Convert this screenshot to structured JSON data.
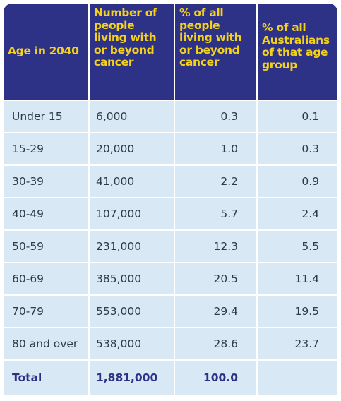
{
  "chart_data": {
    "type": "table",
    "columns": [
      "Age in 2040",
      "Number of people living with or beyond cancer",
      "% of all people living with or beyond cancer",
      "% of all Australians of that age group"
    ],
    "rows": [
      [
        "Under 15",
        "6,000",
        "0.3",
        "0.1"
      ],
      [
        "15-29",
        "20,000",
        "1.0",
        "0.3"
      ],
      [
        "30-39",
        "41,000",
        "2.2",
        "0.9"
      ],
      [
        "40-49",
        "107,000",
        "5.7",
        "2.4"
      ],
      [
        "50-59",
        "231,000",
        "12.3",
        "5.5"
      ],
      [
        "60-69",
        "385,000",
        "20.5",
        "11.4"
      ],
      [
        "70-79",
        "553,000",
        "29.4",
        "19.5"
      ],
      [
        "80 and over",
        "538,000",
        "28.6",
        "23.7"
      ]
    ],
    "total": [
      "Total",
      "1,881,000",
      "100.0",
      ""
    ]
  },
  "colors": {
    "header_bg": "#2e3286",
    "header_text": "#f4d21a",
    "cell_bg": "#d9e8f5",
    "total_text": "#2e3286"
  }
}
